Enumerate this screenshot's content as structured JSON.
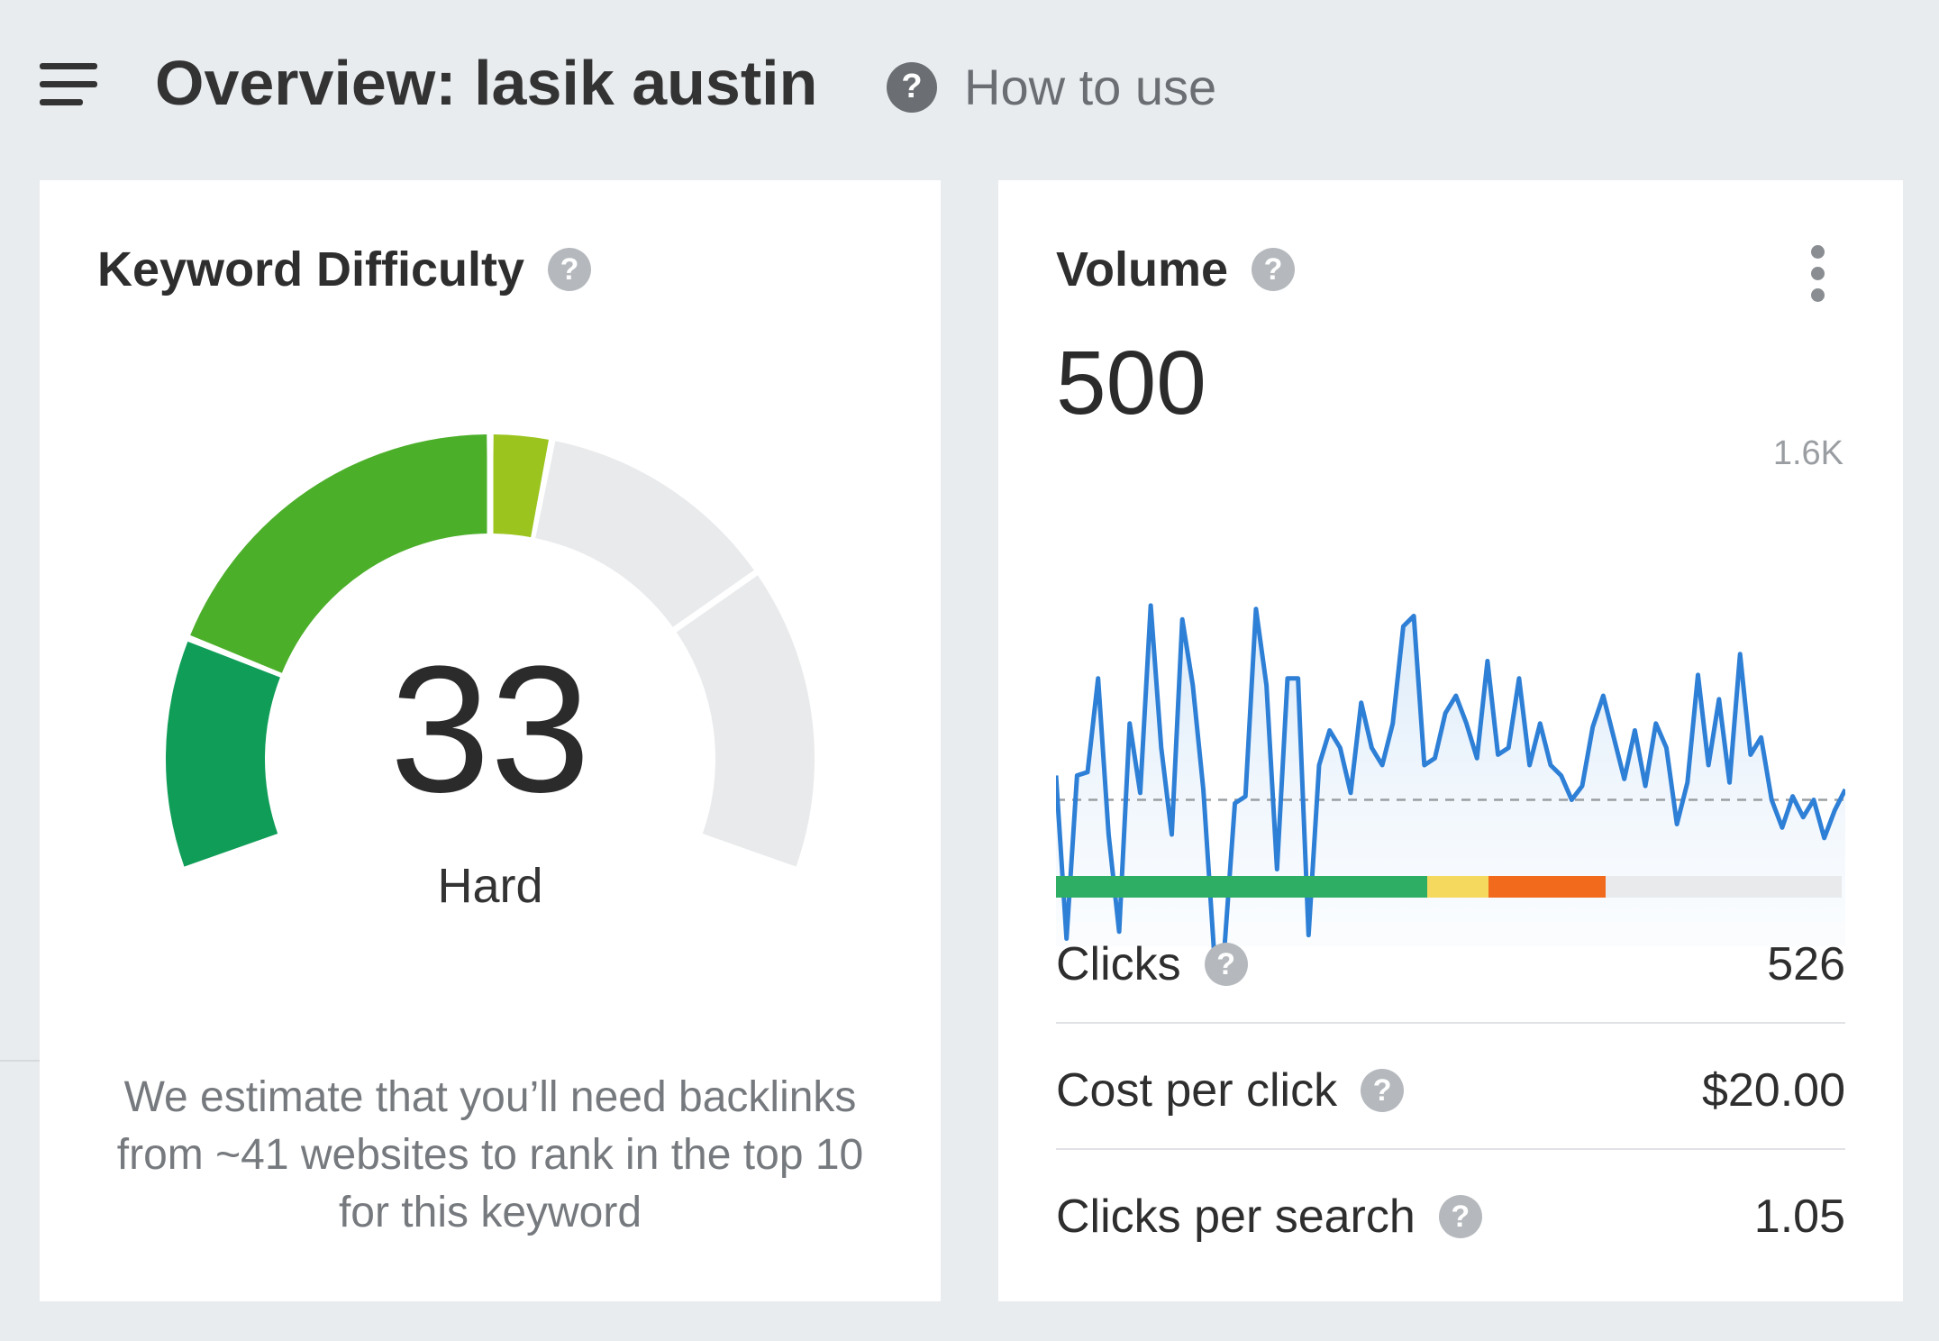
{
  "header": {
    "title": "Overview: lasik austin",
    "help_icon": "question-icon",
    "how_to_label": "How to use"
  },
  "keyword_difficulty": {
    "title": "Keyword Difficulty",
    "score": "33",
    "score_value": 33,
    "score_max": 100,
    "rating": "Hard",
    "description": "We estimate that you’ll need backlinks from ~41 websites to rank in the top 10 for this keyword",
    "gauge_colors": {
      "low": "#0f9d58",
      "mid": "#4caf2a",
      "high": "#9bc41e",
      "empty": "#e8eaec"
    }
  },
  "volume": {
    "title": "Volume",
    "value": "500",
    "chart_data": {
      "type": "line",
      "y_max_label": "1.6K",
      "ylim": [
        0,
        1600
      ],
      "average": 500,
      "color": "#2e7fd6",
      "values": [
        570,
        100,
        570,
        580,
        850,
        400,
        120,
        720,
        520,
        1060,
        650,
        400,
        1020,
        830,
        530,
        70,
        70,
        490,
        510,
        1050,
        830,
        300,
        850,
        850,
        110,
        600,
        700,
        650,
        520,
        780,
        650,
        600,
        720,
        1000,
        1030,
        600,
        620,
        750,
        800,
        720,
        620,
        900,
        630,
        650,
        850,
        600,
        720,
        600,
        570,
        500,
        540,
        710,
        800,
        680,
        560,
        700,
        540,
        720,
        650,
        430,
        550,
        860,
        600,
        790,
        550,
        920,
        630,
        680,
        500,
        420,
        510,
        450,
        500,
        390,
        470,
        530
      ]
    },
    "distribution": [
      {
        "color": "#2eae64",
        "share": 0.472
      },
      {
        "color": "#f5d85e",
        "share": 0.078
      },
      {
        "color": "#f26b1d",
        "share": 0.15
      },
      {
        "color": "#e8eaec",
        "share": 0.3
      }
    ],
    "metrics": [
      {
        "name": "Clicks",
        "value": "526"
      },
      {
        "name": "Cost per click",
        "value": "$20.00"
      },
      {
        "name": "Clicks per search",
        "value": "1.05"
      }
    ]
  }
}
